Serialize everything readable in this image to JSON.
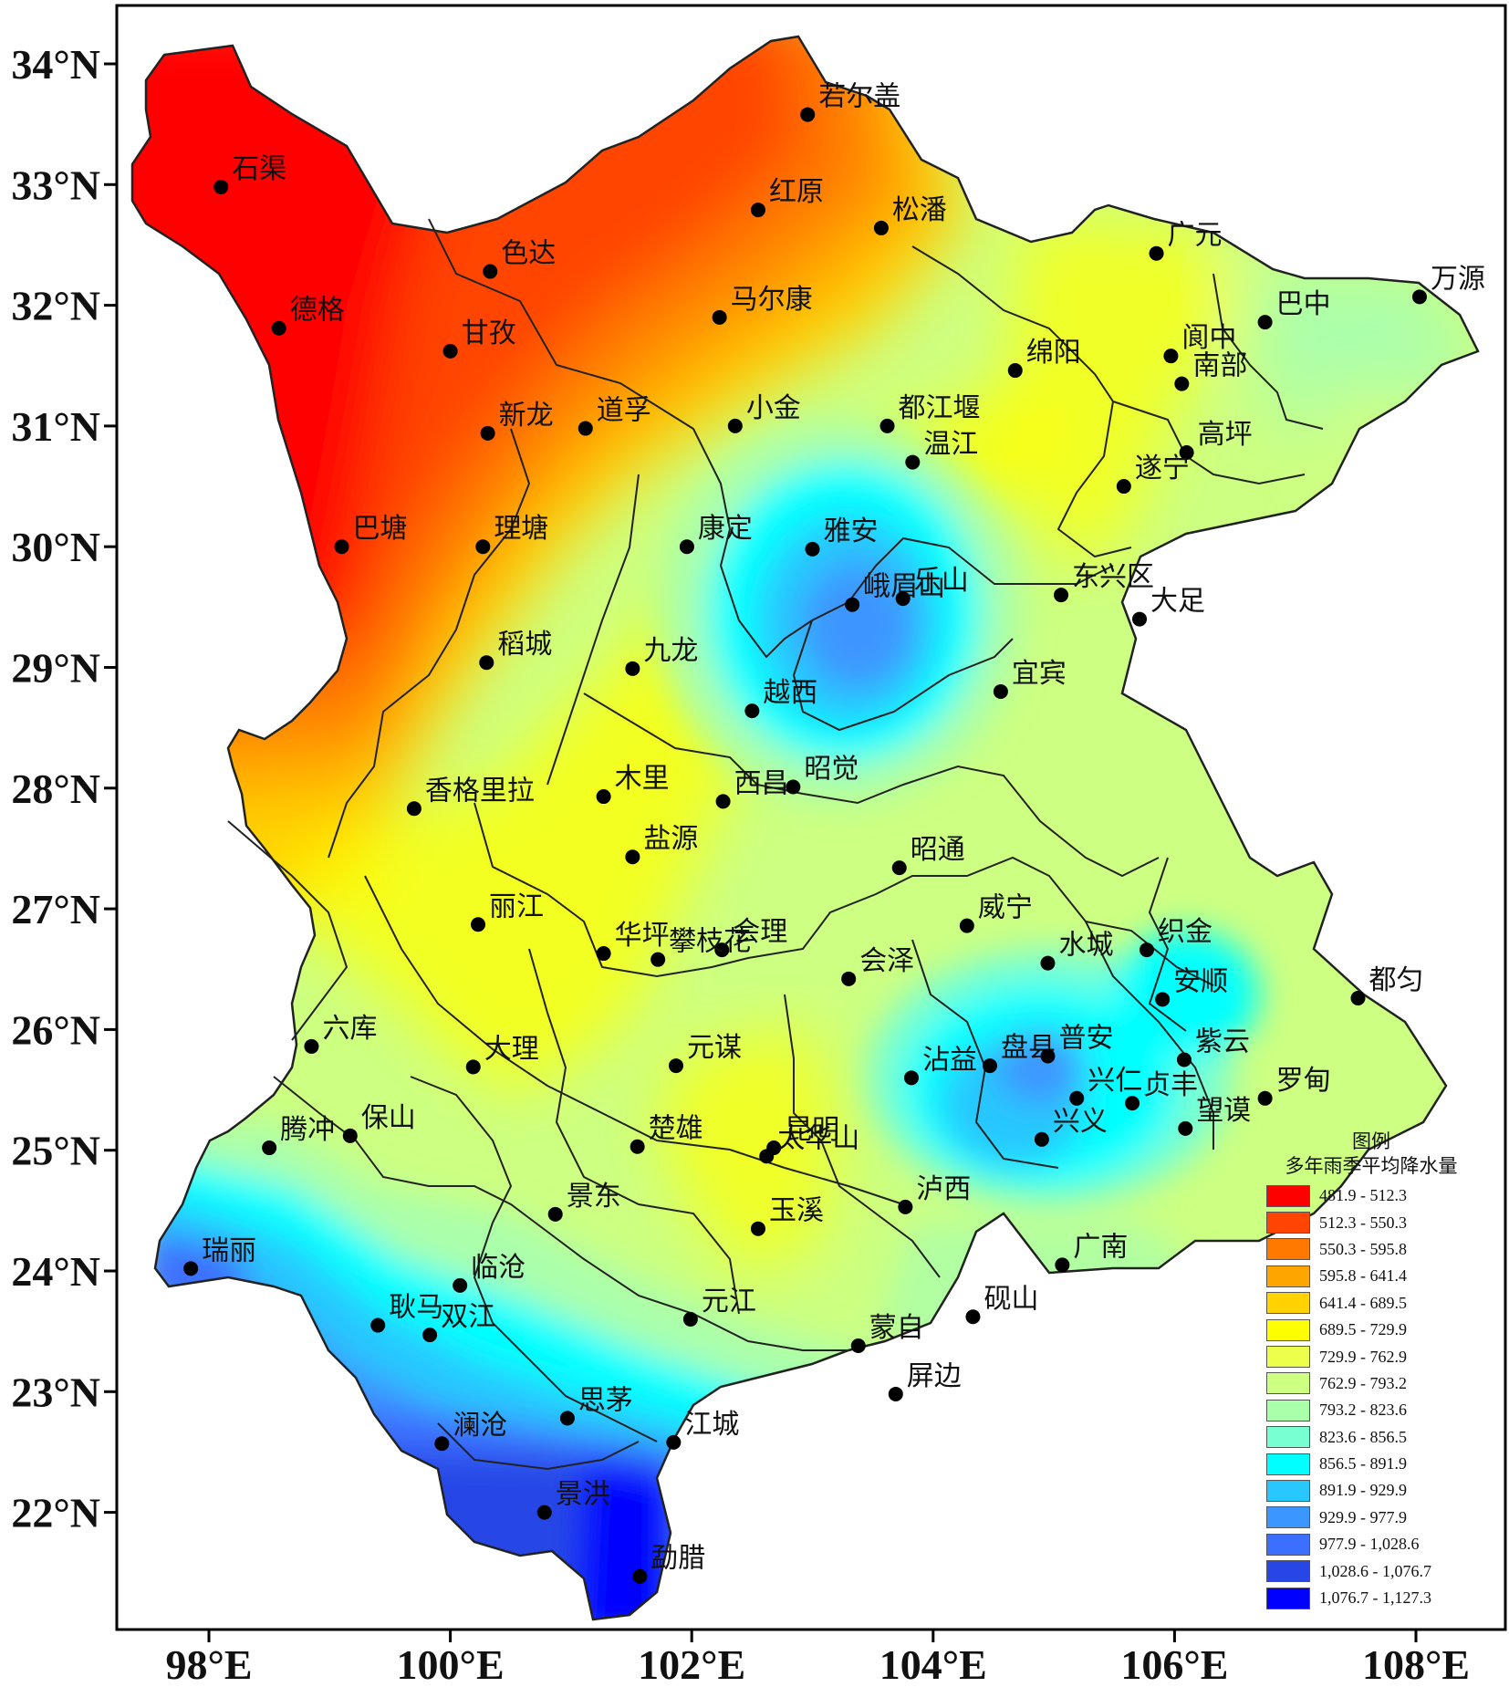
{
  "map": {
    "lat_labels": [
      "34°N",
      "33°N",
      "32°N",
      "31°N",
      "30°N",
      "29°N",
      "28°N",
      "27°N",
      "26°N",
      "25°N",
      "24°N",
      "23°N",
      "22°N"
    ],
    "lon_labels": [
      "98°E",
      "100°E",
      "102°E",
      "104°E",
      "106°E",
      "108°E"
    ],
    "cities": [
      {
        "name": "若尔盖",
        "lon": 102.96,
        "lat": 33.58
      },
      {
        "name": "石渠",
        "lon": 98.1,
        "lat": 32.98
      },
      {
        "name": "红原",
        "lon": 102.55,
        "lat": 32.79
      },
      {
        "name": "松潘",
        "lon": 103.57,
        "lat": 32.64
      },
      {
        "name": "色达",
        "lon": 100.33,
        "lat": 32.28
      },
      {
        "name": "德格",
        "lon": 98.58,
        "lat": 31.81
      },
      {
        "name": "甘孜",
        "lon": 100.0,
        "lat": 31.62
      },
      {
        "name": "马尔康",
        "lon": 102.23,
        "lat": 31.9
      },
      {
        "name": "新龙",
        "lon": 100.31,
        "lat": 30.94
      },
      {
        "name": "道孚",
        "lon": 101.12,
        "lat": 30.98
      },
      {
        "name": "小金",
        "lon": 102.36,
        "lat": 31.0
      },
      {
        "name": "都江堰",
        "lon": 103.62,
        "lat": 31.0
      },
      {
        "name": "温江",
        "lon": 103.83,
        "lat": 30.7
      },
      {
        "name": "绵阳",
        "lon": 104.68,
        "lat": 31.46
      },
      {
        "name": "广元",
        "lon": 105.85,
        "lat": 32.43
      },
      {
        "name": "巴中",
        "lon": 106.75,
        "lat": 31.86
      },
      {
        "name": "万源",
        "lon": 108.03,
        "lat": 32.07
      },
      {
        "name": "阆中",
        "lon": 105.97,
        "lat": 31.58
      },
      {
        "name": "南部",
        "lon": 106.06,
        "lat": 31.35
      },
      {
        "name": "高坪",
        "lon": 106.1,
        "lat": 30.78
      },
      {
        "name": "遂宁",
        "lon": 105.58,
        "lat": 30.5
      },
      {
        "name": "巴塘",
        "lon": 99.1,
        "lat": 30.0
      },
      {
        "name": "理塘",
        "lon": 100.27,
        "lat": 30.0
      },
      {
        "name": "康定",
        "lon": 101.96,
        "lat": 30.0
      },
      {
        "name": "雅安",
        "lon": 103.0,
        "lat": 29.98
      },
      {
        "name": "峨眉山",
        "lon": 103.33,
        "lat": 29.52
      },
      {
        "name": "乐山",
        "lon": 103.75,
        "lat": 29.57
      },
      {
        "name": "东兴区",
        "lon": 105.06,
        "lat": 29.6
      },
      {
        "name": "大足",
        "lon": 105.71,
        "lat": 29.4
      },
      {
        "name": "稻城",
        "lon": 100.3,
        "lat": 29.04
      },
      {
        "name": "九龙",
        "lon": 101.51,
        "lat": 28.99
      },
      {
        "name": "越西",
        "lon": 102.5,
        "lat": 28.64
      },
      {
        "name": "宜宾",
        "lon": 104.56,
        "lat": 28.8
      },
      {
        "name": "木里",
        "lon": 101.27,
        "lat": 27.93
      },
      {
        "name": "西昌",
        "lon": 102.26,
        "lat": 27.89
      },
      {
        "name": "昭觉",
        "lon": 102.84,
        "lat": 28.01
      },
      {
        "name": "香格里拉",
        "lon": 99.7,
        "lat": 27.83
      },
      {
        "name": "盐源",
        "lon": 101.51,
        "lat": 27.43
      },
      {
        "name": "昭通",
        "lon": 103.72,
        "lat": 27.34
      },
      {
        "name": "丽江",
        "lon": 100.23,
        "lat": 26.87
      },
      {
        "name": "威宁",
        "lon": 104.28,
        "lat": 26.86
      },
      {
        "name": "织金",
        "lon": 105.77,
        "lat": 26.66
      },
      {
        "name": "水城",
        "lon": 104.95,
        "lat": 26.55
      },
      {
        "name": "华坪",
        "lon": 101.27,
        "lat": 26.63
      },
      {
        "name": "会理",
        "lon": 102.25,
        "lat": 26.66
      },
      {
        "name": "攀枝花",
        "lon": 101.72,
        "lat": 26.58
      },
      {
        "name": "会泽",
        "lon": 103.3,
        "lat": 26.42
      },
      {
        "name": "安顺",
        "lon": 105.9,
        "lat": 26.25
      },
      {
        "name": "都匀",
        "lon": 107.52,
        "lat": 26.26
      },
      {
        "name": "贞丰",
        "lon": 105.65,
        "lat": 25.39
      },
      {
        "name": "兴仁",
        "lon": 105.19,
        "lat": 25.43
      },
      {
        "name": "兴义",
        "lon": 104.9,
        "lat": 25.09
      },
      {
        "name": "元谋",
        "lon": 101.87,
        "lat": 25.7
      },
      {
        "name": "大理",
        "lon": 100.19,
        "lat": 25.69
      },
      {
        "name": "六库",
        "lon": 98.85,
        "lat": 25.86
      },
      {
        "name": "沾益",
        "lon": 103.82,
        "lat": 25.6
      },
      {
        "name": "盘县",
        "lon": 104.47,
        "lat": 25.7
      },
      {
        "name": "普安",
        "lon": 104.95,
        "lat": 25.78
      },
      {
        "name": "紫云",
        "lon": 106.08,
        "lat": 25.75
      },
      {
        "name": "望谟",
        "lon": 106.09,
        "lat": 25.18
      },
      {
        "name": "罗甸",
        "lon": 106.75,
        "lat": 25.43
      },
      {
        "name": "腾冲",
        "lon": 98.5,
        "lat": 25.02
      },
      {
        "name": "保山",
        "lon": 99.17,
        "lat": 25.12
      },
      {
        "name": "楚雄",
        "lon": 101.55,
        "lat": 25.03
      },
      {
        "name": "昆明",
        "lon": 102.68,
        "lat": 25.02
      },
      {
        "name": "太华山",
        "lon": 102.62,
        "lat": 24.95
      },
      {
        "name": "景东",
        "lon": 100.87,
        "lat": 24.47
      },
      {
        "name": "玉溪",
        "lon": 102.55,
        "lat": 24.35
      },
      {
        "name": "泸西",
        "lon": 103.77,
        "lat": 24.53
      },
      {
        "name": "广南",
        "lon": 105.07,
        "lat": 24.05
      },
      {
        "name": "瑞丽",
        "lon": 97.85,
        "lat": 24.02
      },
      {
        "name": "临沧",
        "lon": 100.08,
        "lat": 23.88
      },
      {
        "name": "耿马",
        "lon": 99.4,
        "lat": 23.55
      },
      {
        "name": "双江",
        "lon": 99.83,
        "lat": 23.47
      },
      {
        "name": "元江",
        "lon": 101.99,
        "lat": 23.6
      },
      {
        "name": "蒙自",
        "lon": 103.38,
        "lat": 23.38
      },
      {
        "name": "砚山",
        "lon": 104.33,
        "lat": 23.62
      },
      {
        "name": "屏边",
        "lon": 103.69,
        "lat": 22.98
      },
      {
        "name": "思茅",
        "lon": 100.97,
        "lat": 22.78
      },
      {
        "name": "澜沧",
        "lon": 99.93,
        "lat": 22.57
      },
      {
        "name": "江城",
        "lon": 101.85,
        "lat": 22.58
      },
      {
        "name": "景洪",
        "lon": 100.78,
        "lat": 22.0
      },
      {
        "name": "勐腊",
        "lon": 101.57,
        "lat": 21.47
      }
    ]
  },
  "legend": {
    "title": "图例",
    "subtitle": "多年雨季平均降水量",
    "items": [
      {
        "label": "481.9 - 512.3",
        "color": "#ff0000"
      },
      {
        "label": "512.3 - 550.3",
        "color": "#ff4500"
      },
      {
        "label": "550.3 - 595.8",
        "color": "#ff7800"
      },
      {
        "label": "595.8 - 641.4",
        "color": "#ffa500"
      },
      {
        "label": "641.4 - 689.5",
        "color": "#ffd200"
      },
      {
        "label": "689.5 - 729.9",
        "color": "#ffff00"
      },
      {
        "label": "729.9 - 762.9",
        "color": "#ebff4b"
      },
      {
        "label": "762.9 - 793.2",
        "color": "#cdff82"
      },
      {
        "label": "793.2 - 823.6",
        "color": "#aaffaa"
      },
      {
        "label": "823.6 - 856.5",
        "color": "#78ffd2"
      },
      {
        "label": "856.5 - 891.9",
        "color": "#00ffff"
      },
      {
        "label": "891.9 - 929.9",
        "color": "#28c8ff"
      },
      {
        "label": "929.9 - 977.9",
        "color": "#3c96ff"
      },
      {
        "label": "977.9 - 1,028.6",
        "color": "#3c6eff"
      },
      {
        "label": "1,028.6 - 1,076.7",
        "color": "#2846e6"
      },
      {
        "label": "1,076.7 - 1,127.3",
        "color": "#0000ff"
      }
    ]
  }
}
